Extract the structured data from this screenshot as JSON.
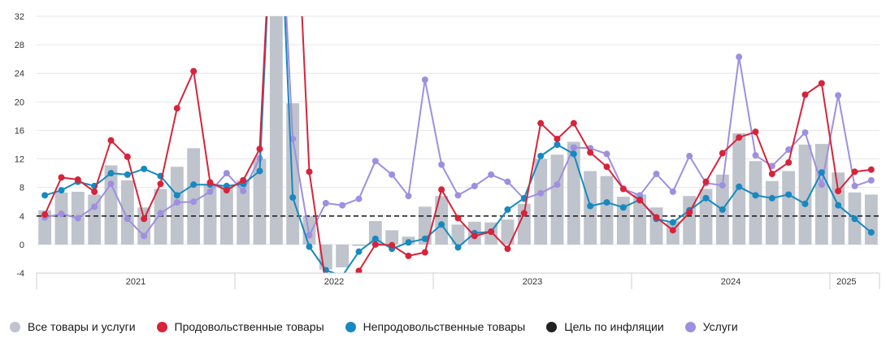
{
  "chart_data": {
    "type": "bar+line",
    "y_ticks": [
      "32",
      "28",
      "24",
      "20",
      "16",
      "12",
      "8",
      "4",
      "0",
      "-4"
    ],
    "ylim": [
      -4,
      32
    ],
    "years": [
      {
        "label": "2021",
        "start": 0,
        "end": 11
      },
      {
        "label": "2022",
        "start": 12,
        "end": 23
      },
      {
        "label": "2023",
        "start": 24,
        "end": 35
      },
      {
        "label": "2024",
        "start": 36,
        "end": 47
      },
      {
        "label": "2025",
        "start": 48,
        "end": 49
      }
    ],
    "target": 4,
    "colors": {
      "all": "#bfc3cc",
      "food": "#d8233a",
      "nonfood": "#1589c0",
      "target": "#222222",
      "services": "#9e8fe0"
    },
    "series": [
      {
        "key": "all",
        "name": "Все товары и услуги",
        "type": "bar",
        "values": [
          4.8,
          7.3,
          7.4,
          7.0,
          11.1,
          9.0,
          5.2,
          7.8,
          10.9,
          13.5,
          8.5,
          8.3,
          9.0,
          12.0,
          33.2,
          19.8,
          4.0,
          -3.5,
          -3.2,
          -0.2,
          3.3,
          2.0,
          1.1,
          5.3,
          6.8,
          2.8,
          3.2,
          3.1,
          3.5,
          5.7,
          12.0,
          12.6,
          14.4,
          10.3,
          9.6,
          6.7,
          7.0,
          5.2,
          3.3,
          6.8,
          7.8,
          9.8,
          15.6,
          11.7,
          8.9,
          10.3,
          14.0,
          14.1,
          10.1,
          7.3,
          7.0
        ]
      },
      {
        "key": "food",
        "name": "Продовольственные товары",
        "type": "line",
        "values": [
          4.2,
          9.4,
          9.1,
          7.4,
          14.6,
          12.3,
          3.6,
          8.5,
          19.1,
          24.3,
          8.7,
          7.6,
          9.0,
          13.4,
          60.0,
          60.0,
          10.2,
          -5.5,
          -5.5,
          -3.7,
          0.0,
          -0.1,
          -1.6,
          -1.1,
          7.7,
          3.7,
          1.2,
          1.8,
          -0.6,
          4.4,
          17.0,
          14.8,
          17.0,
          12.9,
          10.9,
          7.8,
          6.2,
          3.8,
          2.0,
          4.5,
          8.8,
          12.8,
          15.0,
          15.8,
          9.9,
          11.5,
          21.0,
          22.6,
          7.5,
          10.2,
          10.5
        ]
      },
      {
        "key": "nonfood",
        "name": "Непродовольственные товары",
        "type": "line",
        "values": [
          6.9,
          7.6,
          8.8,
          8.2,
          10.0,
          9.8,
          10.6,
          9.6,
          6.9,
          8.4,
          8.4,
          8.2,
          8.5,
          10.3,
          60.0,
          6.6,
          -0.3,
          -3.6,
          -4.4,
          -1.0,
          0.8,
          -0.6,
          0.3,
          0.8,
          2.8,
          -0.4,
          1.6,
          1.8,
          4.9,
          6.5,
          12.4,
          14.0,
          12.7,
          5.4,
          5.9,
          5.2,
          6.3,
          3.6,
          3.1,
          4.8,
          6.5,
          4.9,
          8.1,
          6.9,
          6.5,
          7.0,
          5.7,
          10.1,
          5.5,
          3.6,
          1.7
        ]
      },
      {
        "key": "target",
        "name": "Цель по инфляции",
        "type": "line",
        "values": [
          4
        ]
      },
      {
        "key": "services",
        "name": "Услуги",
        "type": "line",
        "values": [
          3.8,
          4.3,
          3.7,
          5.3,
          8.5,
          3.6,
          1.2,
          4.4,
          5.9,
          6.0,
          7.4,
          10.0,
          7.5,
          12.1,
          60.0,
          14.8,
          1.3,
          5.8,
          5.5,
          6.4,
          11.7,
          9.8,
          6.8,
          23.1,
          11.2,
          6.9,
          8.2,
          9.8,
          8.8,
          6.4,
          7.2,
          8.4,
          13.6,
          13.5,
          12.7,
          7.8,
          6.9,
          9.9,
          7.4,
          12.4,
          8.6,
          8.3,
          26.3,
          12.5,
          11.0,
          13.3,
          15.7,
          8.4,
          20.9,
          8.2,
          9.0
        ]
      }
    ]
  }
}
